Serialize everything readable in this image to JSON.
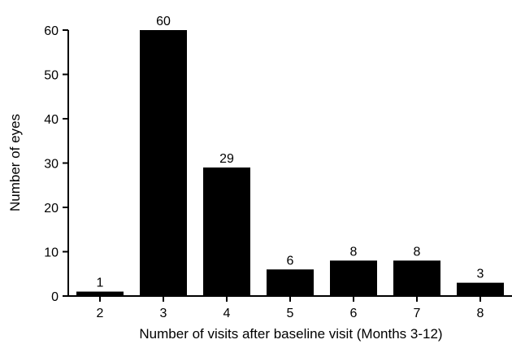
{
  "colors": {
    "bar": "#000000",
    "axis": "#000000",
    "background": "#ffffff"
  },
  "chart_data": {
    "type": "bar",
    "title": "",
    "xlabel": "Number of visits after baseline visit (Months 3-12)",
    "ylabel": "Number of eyes",
    "categories": [
      "2",
      "3",
      "4",
      "5",
      "6",
      "7",
      "8"
    ],
    "values": [
      1,
      60,
      29,
      6,
      8,
      8,
      3
    ],
    "data_labels": [
      "1",
      "60",
      "29",
      "6",
      "8",
      "8",
      "3"
    ],
    "ylim": [
      0,
      60
    ],
    "yticks": [
      0,
      10,
      20,
      30,
      40,
      50,
      60
    ],
    "grid": false,
    "legend": "none"
  }
}
